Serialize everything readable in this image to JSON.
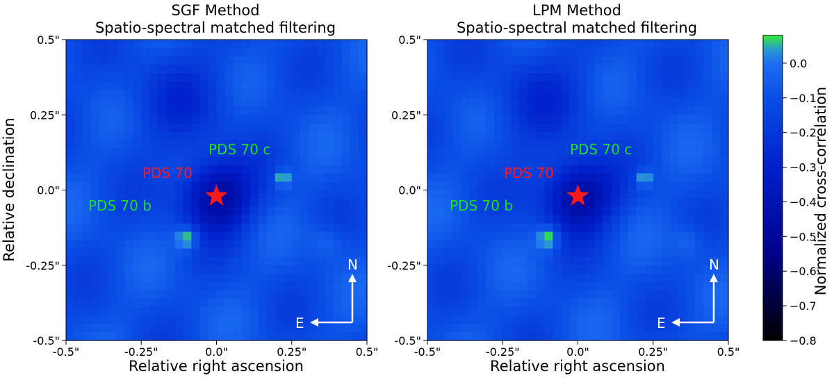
{
  "chart_data": [
    {
      "type": "heatmap",
      "title_line1": "SGF Method",
      "title_line2": "Spatio-spectral matched filtering",
      "xlabel": "Relative right ascension",
      "ylabel": "Relative declination",
      "xlim": [
        0.5,
        -0.5
      ],
      "ylim": [
        -0.5,
        0.5
      ],
      "x_ticks": [
        {
          "value": 0.5,
          "label": "-0.5\""
        },
        {
          "value": 0.25,
          "label": "-0.25\""
        },
        {
          "value": 0.0,
          "label": "0.0\""
        },
        {
          "value": -0.25,
          "label": "0.25\""
        },
        {
          "value": -0.5,
          "label": "0.5\""
        }
      ],
      "y_ticks": [
        {
          "value": 0.5,
          "label": "0.5\""
        },
        {
          "value": 0.25,
          "label": "0.25\""
        },
        {
          "value": 0.0,
          "label": "0.0\""
        },
        {
          "value": -0.25,
          "label": "-0.25\""
        },
        {
          "value": -0.5,
          "label": "-0.5\""
        }
      ],
      "sources": [
        {
          "name": "PDS 70",
          "x": 0.0,
          "y": -0.02,
          "value": -0.5
        },
        {
          "name": "PDS 70 b",
          "x": 0.1,
          "y": -0.16,
          "value": 0.08
        },
        {
          "name": "PDS 70 c",
          "x": -0.22,
          "y": 0.04,
          "value": 0.08
        }
      ],
      "labels": {
        "star": "PDS 70",
        "b": "PDS 70 b",
        "c": "PDS 70 c"
      },
      "compass": {
        "north": "N",
        "east": "E"
      }
    },
    {
      "type": "heatmap",
      "title_line1": "LPM Method",
      "title_line2": "Spatio-spectral matched filtering",
      "xlabel": "Relative right ascension",
      "ylabel": "",
      "xlim": [
        0.5,
        -0.5
      ],
      "ylim": [
        -0.5,
        0.5
      ],
      "x_ticks": [
        {
          "value": 0.5,
          "label": "-0.5\""
        },
        {
          "value": 0.25,
          "label": "-0.25\""
        },
        {
          "value": 0.0,
          "label": "0.0\""
        },
        {
          "value": -0.25,
          "label": "0.25\""
        },
        {
          "value": -0.5,
          "label": "0.5\""
        }
      ],
      "y_ticks": [
        {
          "value": 0.5,
          "label": "0.5\""
        },
        {
          "value": 0.25,
          "label": "0.25\""
        },
        {
          "value": 0.0,
          "label": "0.0\""
        },
        {
          "value": -0.25,
          "label": "-0.25\""
        },
        {
          "value": -0.5,
          "label": "-0.5\""
        }
      ],
      "sources": [
        {
          "name": "PDS 70",
          "x": 0.0,
          "y": -0.02,
          "value": -0.5
        },
        {
          "name": "PDS 70 b",
          "x": 0.1,
          "y": -0.16,
          "value": 0.08
        },
        {
          "name": "PDS 70 c",
          "x": -0.22,
          "y": 0.04,
          "value": 0.08
        }
      ],
      "labels": {
        "star": "PDS 70",
        "b": "PDS 70 b",
        "c": "PDS 70 c"
      },
      "compass": {
        "north": "N",
        "east": "E"
      }
    }
  ],
  "colorbar": {
    "label": "Normalized cross-correlation",
    "range": [
      -0.8,
      0.08
    ],
    "ticks": [
      {
        "value": 0.0,
        "label": "0.0"
      },
      {
        "value": -0.1,
        "label": "−0.1"
      },
      {
        "value": -0.2,
        "label": "−0.2"
      },
      {
        "value": -0.3,
        "label": "−0.3"
      },
      {
        "value": -0.4,
        "label": "−0.4"
      },
      {
        "value": -0.5,
        "label": "−0.5"
      },
      {
        "value": -0.6,
        "label": "−0.6"
      },
      {
        "value": -0.7,
        "label": "−0.7"
      },
      {
        "value": -0.8,
        "label": "−0.8"
      }
    ],
    "stops": [
      {
        "value": -0.8,
        "color": "#000000"
      },
      {
        "value": -0.55,
        "color": "#00008b"
      },
      {
        "value": -0.3,
        "color": "#0020cc"
      },
      {
        "value": -0.1,
        "color": "#0a4ee6"
      },
      {
        "value": 0.0,
        "color": "#1e6ef2"
      },
      {
        "value": 0.04,
        "color": "#2a9ad0"
      },
      {
        "value": 0.08,
        "color": "#33ee33"
      }
    ]
  },
  "colors": {
    "planet_label": "#22dd22",
    "star": "#ff1a1a",
    "compass": "#ffffff"
  }
}
